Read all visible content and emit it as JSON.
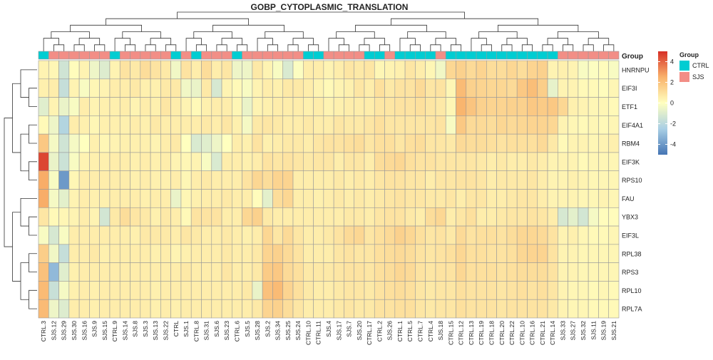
{
  "chart_data": {
    "type": "heatmap",
    "title": "GOBP_CYTOPLASMIC_TRANSLATION",
    "rows": [
      "HNRNPU",
      "EIF3I",
      "ETF1",
      "EIF4A1",
      "RBM4",
      "EIF3K",
      "RPS10",
      "FAU",
      "YBX3",
      "EIF3L",
      "RPL38",
      "RPS3",
      "RPL10",
      "RPL7A"
    ],
    "columns": [
      "CTRL.3",
      "SJS.12",
      "SJS.29",
      "SJS.30",
      "SJS.16",
      "SJS.9",
      "SJS.15",
      "CTRL.9",
      "SJS.14",
      "SJS.8",
      "SJS.3",
      "SJS.13",
      "SJS.22",
      "CTRL",
      "SJS.1",
      "CTRL.8",
      "SJS.31",
      "SJS.6",
      "SJS.23",
      "CTRL.6",
      "SJS.5",
      "SJS.28",
      "SJS.2",
      "SJS.34",
      "SJS.25",
      "SJS.24",
      "CTRL.10",
      "CTRL.11",
      "SJS.4",
      "SJS.17",
      "SJS.7",
      "SJS.20",
      "CTRL.17",
      "CTRL.2",
      "SJS.26",
      "CTRL.1",
      "CTRL.5",
      "CTRL.7",
      "CTRL.4",
      "SJS.18",
      "CTRL.15",
      "CTRL.12",
      "CTRL.13",
      "CTRL.19",
      "CTRL.18",
      "CTRL.20",
      "CTRL.22",
      "CTRL.10",
      "CTRL.16",
      "CTRL.21",
      "CTRL.14",
      "SJS.33",
      "SJS.27",
      "SJS.32",
      "SJS.11",
      "SJS.19",
      "SJS.21"
    ],
    "column_groups": [
      "CTRL",
      "SJS",
      "SJS",
      "SJS",
      "SJS",
      "SJS",
      "SJS",
      "CTRL",
      "SJS",
      "SJS",
      "SJS",
      "SJS",
      "SJS",
      "CTRL",
      "SJS",
      "CTRL",
      "SJS",
      "SJS",
      "SJS",
      "CTRL",
      "SJS",
      "SJS",
      "SJS",
      "SJS",
      "SJS",
      "SJS",
      "CTRL",
      "CTRL",
      "SJS",
      "SJS",
      "SJS",
      "SJS",
      "CTRL",
      "CTRL",
      "SJS",
      "CTRL",
      "CTRL",
      "CTRL",
      "CTRL",
      "SJS",
      "CTRL",
      "CTRL",
      "CTRL",
      "CTRL",
      "CTRL",
      "CTRL",
      "CTRL",
      "CTRL",
      "CTRL",
      "CTRL",
      "CTRL",
      "SJS",
      "SJS",
      "SJS",
      "SJS",
      "SJS",
      "SJS"
    ],
    "values": [
      [
        0.4,
        0.3,
        -1.4,
        0.1,
        0.4,
        -0.5,
        -1.0,
        0.4,
        0.9,
        0.7,
        1.1,
        0.9,
        0.7,
        -0.4,
        0.9,
        0.6,
        1.1,
        0.6,
        0.8,
        -0.5,
        -0.5,
        0.7,
        0.4,
        -0.2,
        -1.1,
        -0.1,
        0.6,
        0.6,
        0.4,
        0.6,
        0.8,
        0.7,
        0.8,
        0.3,
        0.4,
        0.5,
        0.8,
        0.6,
        0.3,
        -0.4,
        1.3,
        1.5,
        1.2,
        1.4,
        1.1,
        1.1,
        1.3,
        1.1,
        1.4,
        1.5,
        0.4,
        0.5,
        0.4,
        -0.2,
        -0.1,
        0.1,
        -0.2
      ],
      [
        0.5,
        0.6,
        -1.7,
        0.4,
        -0.2,
        0.3,
        0.4,
        0.6,
        0.6,
        0.7,
        0.5,
        0.5,
        0.7,
        0.7,
        -0.4,
        -0.6,
        0.7,
        -1.2,
        0.4,
        0.2,
        -0.2,
        0.4,
        0.6,
        0.5,
        0.7,
        0.7,
        0.6,
        0.4,
        0.2,
        0.4,
        0.5,
        0.8,
        0.6,
        1.0,
        0.7,
        0.9,
        0.9,
        1.2,
        0.8,
        0.9,
        0.3,
        2.2,
        1.5,
        1.4,
        1.3,
        1.3,
        1.2,
        1.8,
        2.1,
        1.6,
        -0.7,
        0.4,
        0.4,
        0.2,
        0.2,
        0.1,
        0.3
      ],
      [
        -0.9,
        0.4,
        -0.6,
        -0.2,
        0.6,
        0.4,
        0.5,
        0.5,
        0.6,
        0.4,
        0.6,
        0.5,
        0.8,
        0.6,
        0.4,
        0.2,
        0.5,
        0.6,
        0.6,
        0.3,
        -0.6,
        0.4,
        0.5,
        0.6,
        0.6,
        0.6,
        0.5,
        0.6,
        0.4,
        0.5,
        0.6,
        0.6,
        0.6,
        0.8,
        0.8,
        0.9,
        0.9,
        1.0,
        0.8,
        0.7,
        0.3,
        2.4,
        1.9,
        1.5,
        1.4,
        1.4,
        1.5,
        1.5,
        1.8,
        1.7,
        1.8,
        1.3,
        0.5,
        0.4,
        0.3,
        0.3,
        0.2
      ],
      [
        0.2,
        -0.5,
        -2.2,
        0.6,
        0.5,
        0.3,
        0.5,
        0.5,
        0.5,
        0.6,
        0.5,
        0.7,
        0.6,
        0.6,
        0.6,
        0.6,
        0.7,
        0.6,
        0.8,
        0.5,
        -0.3,
        0.7,
        0.8,
        0.7,
        0.6,
        0.6,
        0.7,
        0.6,
        0.6,
        0.8,
        0.7,
        0.7,
        0.8,
        1.0,
        0.8,
        0.8,
        0.8,
        0.8,
        0.8,
        0.9,
        -0.2,
        1.8,
        1.2,
        1.2,
        1.1,
        1.3,
        1.2,
        1.3,
        1.4,
        1.4,
        1.3,
        0.4,
        0.3,
        0.2,
        0.3,
        0.2,
        0.3
      ],
      [
        1.8,
        -0.3,
        -1.4,
        -0.3,
        0.0,
        0.5,
        0.3,
        0.4,
        0.5,
        0.5,
        0.5,
        0.4,
        0.6,
        0.7,
        0.0,
        -1.1,
        -0.9,
        -0.5,
        0.0,
        0.6,
        0.5,
        0.9,
        0.5,
        0.6,
        0.7,
        0.7,
        0.6,
        0.8,
        0.9,
        0.9,
        1.0,
        1.1,
        0.8,
        1.0,
        1.0,
        0.8,
        1.0,
        1.1,
        0.8,
        0.8,
        0.7,
        1.2,
        1.1,
        1.1,
        1.0,
        0.9,
        1.0,
        1.0,
        1.0,
        1.2,
        0.7,
        0.2,
        0.4,
        0.4,
        0.3,
        0.4,
        0.5
      ],
      [
        4.6,
        -0.6,
        -1.5,
        -0.2,
        0.4,
        0.5,
        0.5,
        0.6,
        0.6,
        0.5,
        0.6,
        0.5,
        0.6,
        0.4,
        0.3,
        0.4,
        -0.2,
        -1.1,
        0.6,
        0.6,
        0.5,
        0.6,
        0.9,
        0.8,
        0.9,
        0.8,
        0.7,
        0.8,
        0.8,
        0.6,
        0.8,
        0.8,
        0.6,
        1.1,
        1.2,
        1.3,
        1.0,
        0.9,
        0.9,
        0.8,
        0.8,
        0.8,
        0.8,
        0.7,
        0.6,
        0.7,
        0.6,
        0.6,
        0.7,
        0.6,
        0.4,
        0.4,
        0.4,
        0.2,
        0.3,
        0.3,
        0.3
      ],
      [
        2.6,
        -0.2,
        -4.0,
        0.3,
        0.6,
        0.6,
        0.6,
        0.6,
        0.6,
        0.5,
        0.6,
        0.5,
        0.5,
        0.6,
        0.3,
        0.6,
        0.7,
        0.6,
        0.6,
        0.6,
        0.9,
        1.3,
        1.1,
        1.4,
        1.4,
        0.6,
        0.6,
        0.6,
        0.6,
        0.7,
        0.6,
        0.7,
        0.6,
        0.8,
        0.9,
        0.9,
        0.8,
        0.8,
        0.6,
        0.8,
        0.8,
        0.9,
        0.9,
        0.8,
        0.6,
        0.7,
        0.7,
        0.7,
        0.8,
        0.6,
        0.4,
        0.4,
        0.5,
        0.4,
        0.3,
        0.3,
        0.3
      ],
      [
        2.6,
        -0.3,
        -0.8,
        0.4,
        0.6,
        0.5,
        0.5,
        0.6,
        0.6,
        0.6,
        0.5,
        0.6,
        0.6,
        -0.6,
        0.3,
        0.5,
        0.6,
        0.6,
        0.7,
        0.6,
        0.6,
        0.1,
        -0.8,
        1.1,
        1.3,
        0.6,
        0.6,
        0.5,
        0.6,
        0.7,
        0.6,
        0.7,
        0.6,
        0.7,
        0.8,
        0.9,
        0.8,
        0.8,
        0.7,
        0.7,
        0.8,
        0.6,
        0.8,
        0.8,
        0.6,
        0.6,
        0.7,
        0.8,
        0.8,
        0.6,
        0.4,
        0.4,
        0.4,
        0.3,
        0.3,
        0.4,
        0.3
      ],
      [
        0.8,
        0.2,
        0.3,
        0.4,
        0.6,
        0.4,
        -1.3,
        0.7,
        1.1,
        0.8,
        0.7,
        0.5,
        0.7,
        0.6,
        0.2,
        0.9,
        0.9,
        0.9,
        0.6,
        0.6,
        1.3,
        1.5,
        0.7,
        0.6,
        0.6,
        0.6,
        0.6,
        0.6,
        0.6,
        0.6,
        0.7,
        0.7,
        0.6,
        0.8,
        0.9,
        0.9,
        0.7,
        0.6,
        1.1,
        1.3,
        0.6,
        0.8,
        1.0,
        0.6,
        0.6,
        0.7,
        0.8,
        0.8,
        0.9,
        0.8,
        0.6,
        -1.2,
        -0.8,
        -1.3,
        -0.3,
        0.1,
        0.1
      ],
      [
        -0.2,
        -1.2,
        -0.2,
        0.6,
        0.6,
        0.6,
        0.6,
        0.6,
        0.6,
        0.5,
        0.7,
        0.7,
        0.7,
        0.6,
        0.8,
        0.7,
        0.6,
        0.6,
        0.7,
        0.6,
        0.5,
        0.6,
        1.3,
        0.8,
        1.2,
        0.8,
        0.6,
        0.6,
        0.7,
        0.9,
        1.2,
        1.3,
        0.8,
        1.0,
        1.2,
        1.5,
        1.3,
        1.0,
        0.8,
        0.9,
        0.7,
        1.2,
        0.9,
        1.0,
        1.0,
        0.9,
        1.1,
        1.3,
        1.3,
        1.2,
        0.9,
        0.4,
        0.5,
        0.3,
        0.2,
        0.2,
        0.3
      ],
      [
        1.6,
        -0.4,
        -1.7,
        0.6,
        0.6,
        0.7,
        0.5,
        0.6,
        0.6,
        0.6,
        0.6,
        0.5,
        0.6,
        0.4,
        0.5,
        0.6,
        0.6,
        0.6,
        0.7,
        0.6,
        0.6,
        0.7,
        1.4,
        1.5,
        1.2,
        0.9,
        0.6,
        0.6,
        0.6,
        0.8,
        0.9,
        0.8,
        0.8,
        1.0,
        1.1,
        1.2,
        1.1,
        0.9,
        0.8,
        0.9,
        1.0,
        1.3,
        1.0,
        1.0,
        0.9,
        0.9,
        1.0,
        1.3,
        1.4,
        1.4,
        0.9,
        0.4,
        0.4,
        0.3,
        0.3,
        0.3,
        0.3
      ],
      [
        2.0,
        -3.1,
        -0.9,
        0.5,
        0.6,
        0.6,
        0.6,
        0.6,
        0.6,
        0.6,
        0.6,
        0.6,
        0.6,
        0.6,
        0.7,
        0.6,
        0.6,
        0.6,
        0.8,
        0.6,
        0.6,
        0.7,
        1.7,
        1.8,
        1.2,
        1.0,
        0.7,
        0.7,
        0.7,
        0.8,
        0.9,
        0.9,
        0.8,
        1.0,
        1.1,
        1.3,
        1.2,
        0.9,
        0.8,
        0.9,
        0.9,
        1.3,
        1.0,
        1.0,
        1.0,
        0.9,
        1.0,
        1.1,
        1.1,
        1.1,
        0.9,
        0.4,
        0.4,
        0.3,
        0.3,
        0.3,
        0.3
      ],
      [
        2.2,
        -1.6,
        -0.3,
        0.5,
        0.6,
        0.5,
        0.6,
        0.6,
        0.6,
        0.6,
        0.6,
        0.5,
        0.6,
        0.6,
        0.6,
        0.6,
        0.6,
        0.6,
        0.6,
        0.6,
        0.7,
        -0.6,
        2.0,
        2.2,
        1.4,
        1.0,
        0.7,
        0.6,
        0.6,
        0.7,
        0.8,
        0.8,
        0.7,
        0.9,
        1.0,
        1.1,
        1.0,
        0.8,
        0.7,
        0.8,
        0.8,
        1.0,
        0.9,
        0.9,
        0.9,
        0.8,
        0.9,
        1.0,
        0.9,
        1.0,
        0.8,
        0.4,
        0.3,
        0.3,
        0.2,
        0.3,
        0.2
      ],
      [
        2.2,
        -0.5,
        -1.0,
        0.6,
        0.6,
        0.5,
        0.6,
        0.6,
        0.6,
        0.6,
        0.6,
        0.5,
        0.6,
        0.5,
        0.6,
        0.6,
        0.6,
        0.6,
        0.6,
        0.6,
        0.6,
        0.7,
        1.4,
        1.5,
        1.1,
        0.8,
        0.6,
        0.6,
        0.6,
        0.7,
        0.8,
        0.7,
        0.7,
        0.9,
        0.9,
        1.0,
        1.0,
        0.8,
        0.7,
        0.8,
        0.8,
        1.0,
        0.9,
        0.9,
        0.9,
        0.8,
        0.9,
        0.9,
        0.9,
        0.9,
        0.7,
        0.4,
        0.3,
        0.3,
        0.2,
        0.2,
        0.2
      ]
    ],
    "legend": {
      "color_title": "Group",
      "ticks": [
        4,
        2,
        0,
        -2,
        -4
      ],
      "range": [
        -5,
        5
      ],
      "colors": {
        "low": "#4575b4",
        "mid": "#ffffbf",
        "high": "#d73027"
      },
      "group_title": "Group",
      "groups": [
        {
          "name": "CTRL",
          "color": "#00cdd2"
        },
        {
          "name": "SJS",
          "color": "#f28e86"
        }
      ]
    },
    "annotation_label": "Group",
    "clustering": "hierarchical (row and column dendrograms)"
  }
}
